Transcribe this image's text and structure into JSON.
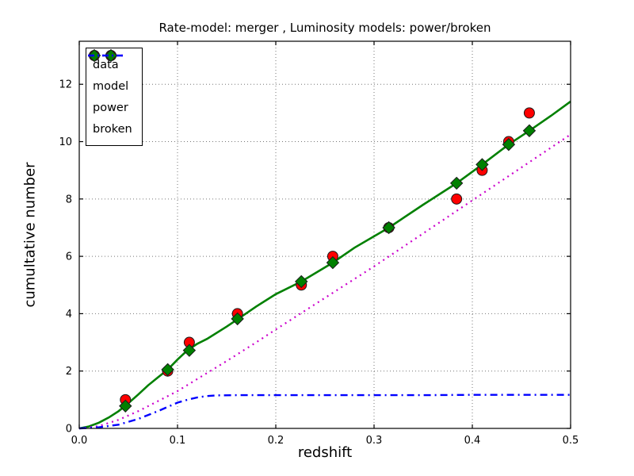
{
  "chart_data": {
    "type": "line",
    "title": "Rate-model: merger , Luminosity models: power/broken",
    "xlabel": "redshift",
    "ylabel": "cumultative number",
    "xlim": [
      0.0,
      0.5
    ],
    "ylim": [
      0.0,
      13.5
    ],
    "xticks": [
      0.0,
      0.1,
      0.2,
      0.3,
      0.4,
      0.5
    ],
    "xtick_labels": [
      "0.0",
      "0.1",
      "0.2",
      "0.3",
      "0.4",
      "0.5"
    ],
    "yticks": [
      0,
      2,
      4,
      6,
      8,
      10,
      12
    ],
    "ytick_labels": [
      "0",
      "2",
      "4",
      "6",
      "8",
      "10",
      "12"
    ],
    "grid": true,
    "colors": {
      "data": "#ff0000",
      "model": "#008000",
      "power": "#cc00cc",
      "broken": "#0000ff",
      "frame": "#000000",
      "grid": "#777777"
    },
    "legend": {
      "position": "upper left",
      "items": [
        {
          "label": "data",
          "swatch": "circle-pair",
          "color": "#ff0000"
        },
        {
          "label": "model",
          "swatch": "diamond-pair",
          "color": "#008000"
        },
        {
          "label": "power",
          "swatch": "dotted-line",
          "color": "#cc00cc"
        },
        {
          "label": "broken",
          "swatch": "dashdot-line",
          "color": "#0000ff"
        }
      ]
    },
    "series": [
      {
        "name": "model-curve",
        "plot": "line",
        "style": "solid",
        "color": "#008000",
        "width": 2.6,
        "x": [
          0.0,
          0.01,
          0.02,
          0.03,
          0.04,
          0.05,
          0.06,
          0.07,
          0.08,
          0.09,
          0.1,
          0.11,
          0.12,
          0.13,
          0.15,
          0.161,
          0.18,
          0.2,
          0.226,
          0.258,
          0.28,
          0.315,
          0.35,
          0.384,
          0.41,
          0.437,
          0.458,
          0.48,
          0.5
        ],
        "y": [
          0.0,
          0.07,
          0.2,
          0.38,
          0.6,
          0.88,
          1.18,
          1.5,
          1.78,
          2.05,
          2.4,
          2.72,
          2.95,
          3.12,
          3.55,
          3.8,
          4.25,
          4.68,
          5.12,
          5.78,
          6.3,
          7.0,
          7.8,
          8.55,
          9.2,
          9.9,
          10.38,
          10.9,
          11.4
        ]
      },
      {
        "name": "power",
        "plot": "line",
        "style": "dotted",
        "color": "#cc00cc",
        "width": 2.2,
        "x": [
          0.0,
          0.02,
          0.04,
          0.06,
          0.08,
          0.1,
          0.12,
          0.15,
          0.18,
          0.2,
          0.25,
          0.3,
          0.35,
          0.4,
          0.45,
          0.5
        ],
        "y": [
          0.0,
          0.08,
          0.3,
          0.6,
          0.95,
          1.3,
          1.72,
          2.35,
          3.0,
          3.45,
          4.55,
          5.65,
          6.8,
          7.95,
          9.1,
          10.25
        ]
      },
      {
        "name": "broken",
        "plot": "line",
        "style": "dashdot",
        "color": "#0000ff",
        "width": 2.4,
        "x": [
          0.0,
          0.02,
          0.04,
          0.06,
          0.08,
          0.1,
          0.11,
          0.12,
          0.13,
          0.14,
          0.16,
          0.2,
          0.25,
          0.3,
          0.35,
          0.4,
          0.45,
          0.5
        ],
        "y": [
          0.0,
          0.04,
          0.13,
          0.33,
          0.6,
          0.9,
          1.0,
          1.08,
          1.13,
          1.15,
          1.16,
          1.16,
          1.16,
          1.16,
          1.16,
          1.17,
          1.17,
          1.17
        ]
      },
      {
        "name": "data",
        "plot": "scatter",
        "marker": "circle",
        "color": "#ff0000",
        "edge": "#1a1a1a",
        "x": [
          0.047,
          0.09,
          0.112,
          0.161,
          0.226,
          0.258,
          0.315,
          0.384,
          0.41,
          0.437,
          0.458
        ],
        "y": [
          1.0,
          2.0,
          3.0,
          4.0,
          5.0,
          6.0,
          7.0,
          8.0,
          9.0,
          10.0,
          11.0
        ]
      },
      {
        "name": "model",
        "plot": "scatter",
        "marker": "diamond",
        "color": "#008000",
        "edge": "#1a1a1a",
        "x": [
          0.047,
          0.09,
          0.112,
          0.161,
          0.226,
          0.258,
          0.315,
          0.384,
          0.41,
          0.437,
          0.458
        ],
        "y": [
          0.78,
          2.05,
          2.72,
          3.82,
          5.12,
          5.78,
          7.0,
          8.55,
          9.2,
          9.9,
          10.38
        ]
      }
    ]
  }
}
